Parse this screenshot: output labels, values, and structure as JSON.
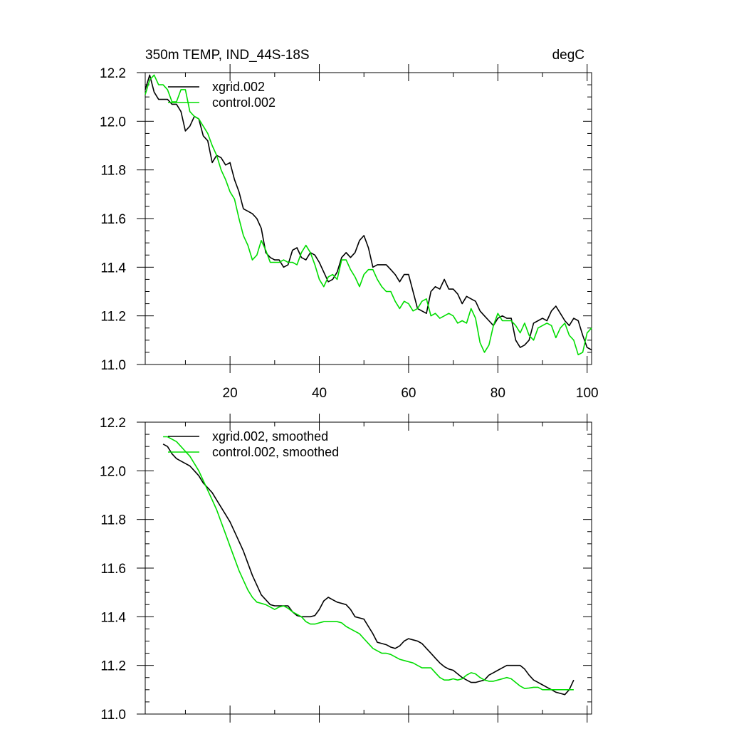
{
  "chart_data": [
    {
      "type": "line",
      "title": "350m TEMP, IND_44S-18S",
      "units": "degC",
      "xlabel": "",
      "ylabel": "",
      "xlim": [
        1,
        101
      ],
      "ylim": [
        11.0,
        12.2
      ],
      "xticks": [
        20,
        40,
        60,
        80,
        100
      ],
      "yticks": [
        11.0,
        11.2,
        11.4,
        11.6,
        11.8,
        12.0,
        12.2
      ],
      "ytick_labels": [
        "11.0",
        "11.2",
        "11.4",
        "11.6",
        "11.8",
        "12.0",
        "12.2"
      ],
      "xtick_labels": [
        "20",
        "40",
        "60",
        "80",
        "100"
      ],
      "grid": false,
      "legend": "top-left",
      "x": [
        1,
        2,
        3,
        4,
        5,
        6,
        7,
        8,
        9,
        10,
        11,
        12,
        13,
        14,
        15,
        16,
        17,
        18,
        19,
        20,
        21,
        22,
        23,
        24,
        25,
        26,
        27,
        28,
        29,
        30,
        31,
        32,
        33,
        34,
        35,
        36,
        37,
        38,
        39,
        40,
        41,
        42,
        43,
        44,
        45,
        46,
        47,
        48,
        49,
        50,
        51,
        52,
        53,
        54,
        55,
        56,
        57,
        58,
        59,
        60,
        61,
        62,
        63,
        64,
        65,
        66,
        67,
        68,
        69,
        70,
        71,
        72,
        73,
        74,
        75,
        76,
        77,
        78,
        79,
        80,
        81,
        82,
        83,
        84,
        85,
        86,
        87,
        88,
        89,
        90,
        91,
        92,
        93,
        94,
        95,
        96,
        97,
        98,
        99,
        100,
        101
      ],
      "series": [
        {
          "name": "xgrid.002",
          "color": "#000000",
          "values": [
            12.13,
            12.19,
            12.12,
            12.09,
            12.09,
            12.09,
            12.07,
            12.07,
            12.04,
            11.96,
            11.98,
            12.02,
            12.01,
            11.94,
            11.92,
            11.83,
            11.86,
            11.85,
            11.82,
            11.83,
            11.76,
            11.71,
            11.64,
            11.63,
            11.62,
            11.6,
            11.56,
            11.46,
            11.44,
            11.43,
            11.43,
            11.4,
            11.41,
            11.47,
            11.48,
            11.44,
            11.43,
            11.46,
            11.45,
            11.42,
            11.38,
            11.34,
            11.35,
            11.38,
            11.44,
            11.46,
            11.44,
            11.46,
            11.51,
            11.53,
            11.48,
            11.4,
            11.41,
            11.41,
            11.41,
            11.39,
            11.37,
            11.34,
            11.37,
            11.37,
            11.3,
            11.23,
            11.22,
            11.21,
            11.3,
            11.32,
            11.31,
            11.35,
            11.31,
            11.31,
            11.29,
            11.25,
            11.28,
            11.27,
            11.26,
            11.22,
            11.2,
            11.18,
            11.16,
            11.19,
            11.2,
            11.19,
            11.19,
            11.1,
            11.07,
            11.08,
            11.1,
            11.17,
            11.18,
            11.19,
            11.18,
            11.22,
            11.24,
            11.21,
            11.18,
            11.16,
            11.19,
            11.18,
            11.12,
            11.07,
            11.06
          ]
        },
        {
          "name": "control.002",
          "color": "#00dd00",
          "values": [
            12.11,
            12.17,
            12.19,
            12.15,
            12.15,
            12.13,
            12.08,
            12.08,
            12.13,
            12.13,
            12.04,
            12.02,
            12.01,
            11.98,
            11.95,
            11.9,
            11.86,
            11.8,
            11.76,
            11.71,
            11.68,
            11.6,
            11.53,
            11.49,
            11.43,
            11.45,
            11.51,
            11.47,
            11.42,
            11.42,
            11.42,
            11.43,
            11.42,
            11.42,
            11.41,
            11.46,
            11.49,
            11.46,
            11.41,
            11.35,
            11.32,
            11.36,
            11.37,
            11.35,
            11.43,
            11.43,
            11.39,
            11.36,
            11.32,
            11.37,
            11.39,
            11.39,
            11.35,
            11.32,
            11.3,
            11.3,
            11.26,
            11.23,
            11.26,
            11.25,
            11.22,
            11.23,
            11.26,
            11.27,
            11.2,
            11.21,
            11.19,
            11.2,
            11.21,
            11.2,
            11.17,
            11.18,
            11.17,
            11.23,
            11.19,
            11.09,
            11.05,
            11.08,
            11.16,
            11.21,
            11.18,
            11.18,
            11.18,
            11.16,
            11.13,
            11.17,
            11.12,
            11.1,
            11.15,
            11.16,
            11.17,
            11.16,
            11.11,
            11.15,
            11.17,
            11.12,
            11.1,
            11.04,
            11.05,
            11.13,
            11.15
          ]
        }
      ]
    },
    {
      "type": "line",
      "xlabel": "",
      "ylabel": "",
      "xlim": [
        1,
        101
      ],
      "ylim": [
        11.0,
        12.2
      ],
      "xticks": [
        20,
        40,
        60,
        80,
        100
      ],
      "yticks": [
        11.0,
        11.2,
        11.4,
        11.6,
        11.8,
        12.0,
        12.2
      ],
      "ytick_labels": [
        "11.0",
        "11.2",
        "11.4",
        "11.6",
        "11.8",
        "12.0",
        "12.2"
      ],
      "grid": false,
      "legend": "top-left",
      "x": [
        5,
        6,
        7,
        8,
        9,
        10,
        11,
        12,
        13,
        14,
        15,
        16,
        17,
        18,
        19,
        20,
        21,
        22,
        23,
        24,
        25,
        26,
        27,
        28,
        29,
        30,
        31,
        32,
        33,
        34,
        35,
        36,
        37,
        38,
        39,
        40,
        41,
        42,
        43,
        44,
        45,
        46,
        47,
        48,
        49,
        50,
        51,
        52,
        53,
        54,
        55,
        56,
        57,
        58,
        59,
        60,
        61,
        62,
        63,
        64,
        65,
        66,
        67,
        68,
        69,
        70,
        71,
        72,
        73,
        74,
        75,
        76,
        77,
        78,
        79,
        80,
        81,
        82,
        83,
        84,
        85,
        86,
        87,
        88,
        89,
        90,
        91,
        92,
        93,
        94,
        95,
        96,
        97
      ],
      "series": [
        {
          "name": "xgrid.002, smoothed",
          "color": "#000000",
          "values": [
            12.11,
            12.1,
            12.07,
            12.05,
            12.04,
            12.03,
            12.02,
            12.0,
            11.98,
            11.95,
            11.93,
            11.91,
            11.88,
            11.85,
            11.82,
            11.79,
            11.75,
            11.71,
            11.67,
            11.62,
            11.57,
            11.53,
            11.49,
            11.47,
            11.45,
            11.445,
            11.445,
            11.445,
            11.445,
            11.42,
            11.405,
            11.4,
            11.4,
            11.4,
            11.405,
            11.43,
            11.465,
            11.48,
            11.47,
            11.46,
            11.455,
            11.45,
            11.43,
            11.4,
            11.395,
            11.39,
            11.36,
            11.33,
            11.295,
            11.29,
            11.285,
            11.275,
            11.27,
            11.28,
            11.3,
            11.31,
            11.305,
            11.3,
            11.29,
            11.27,
            11.25,
            11.23,
            11.21,
            11.195,
            11.185,
            11.18,
            11.165,
            11.15,
            11.14,
            11.13,
            11.13,
            11.135,
            11.14,
            11.16,
            11.17,
            11.18,
            11.19,
            11.2,
            11.2,
            11.2,
            11.2,
            11.185,
            11.16,
            11.14,
            11.13,
            11.12,
            11.11,
            11.1,
            11.09,
            11.085,
            11.08,
            11.1,
            11.14
          ]
        },
        {
          "name": "control.002, smoothed",
          "color": "#00dd00",
          "values": [
            12.14,
            12.14,
            12.13,
            12.12,
            12.1,
            12.08,
            12.06,
            12.03,
            12.0,
            11.96,
            11.92,
            11.88,
            11.84,
            11.79,
            11.74,
            11.69,
            11.64,
            11.59,
            11.55,
            11.51,
            11.48,
            11.46,
            11.455,
            11.45,
            11.44,
            11.43,
            11.44,
            11.445,
            11.435,
            11.42,
            11.41,
            11.4,
            11.38,
            11.37,
            11.37,
            11.375,
            11.38,
            11.38,
            11.38,
            11.38,
            11.375,
            11.36,
            11.35,
            11.34,
            11.33,
            11.31,
            11.29,
            11.27,
            11.26,
            11.25,
            11.25,
            11.245,
            11.235,
            11.225,
            11.22,
            11.215,
            11.21,
            11.2,
            11.19,
            11.19,
            11.19,
            11.17,
            11.15,
            11.14,
            11.14,
            11.145,
            11.14,
            11.145,
            11.16,
            11.17,
            11.165,
            11.15,
            11.14,
            11.135,
            11.135,
            11.14,
            11.145,
            11.15,
            11.145,
            11.13,
            11.115,
            11.105,
            11.107,
            11.11,
            11.11,
            11.1,
            11.1,
            11.1,
            11.1,
            11.1,
            11.1,
            11.1,
            11.1
          ]
        }
      ]
    }
  ]
}
